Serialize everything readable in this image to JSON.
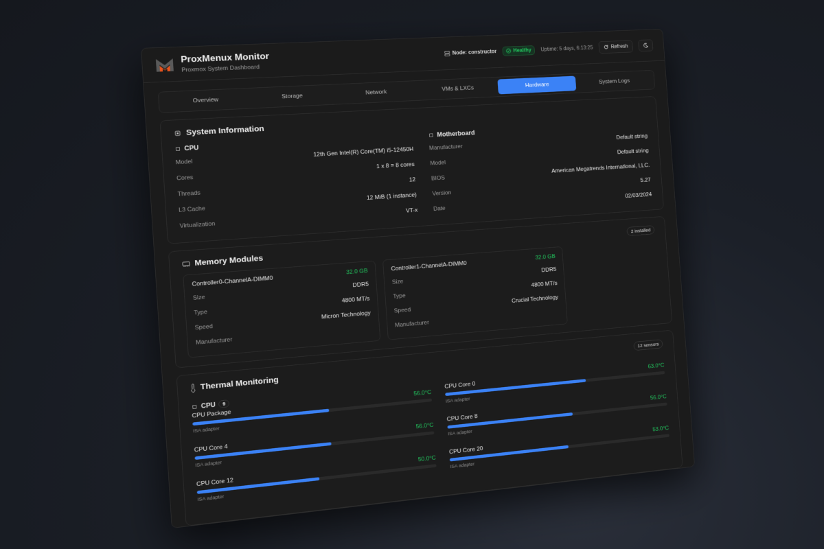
{
  "header": {
    "title": "ProxMenux Monitor",
    "subtitle": "Proxmox System Dashboard",
    "node": "Node: constructor",
    "status": "Healthy",
    "uptime": "Uptime: 5 days, 6:13:25",
    "refresh": "Refresh",
    "logo_colors": {
      "gray": "#5a5a5a",
      "orange": "#e8541e"
    }
  },
  "tabs": {
    "items": [
      "Overview",
      "Storage",
      "Network",
      "VMs & LXCs",
      "Hardware",
      "System Logs"
    ],
    "active": "Hardware"
  },
  "system_info": {
    "title": "System Information",
    "cpu": {
      "title": "CPU",
      "rows": [
        {
          "label": "Model",
          "value": "12th Gen Intel(R) Core(TM) i5-12450H"
        },
        {
          "label": "Cores",
          "value": "1 x 8 = 8 cores"
        },
        {
          "label": "Threads",
          "value": "12"
        },
        {
          "label": "L3 Cache",
          "value": "12 MiB (1 instance)"
        },
        {
          "label": "Virtualization",
          "value": "VT-x"
        }
      ]
    },
    "motherboard": {
      "title": "Motherboard",
      "rows": [
        {
          "label": "Manufacturer",
          "value": "Default string"
        },
        {
          "label": "Model",
          "value": "Default string"
        },
        {
          "label": "BIOS",
          "value": "American Megatrends International, LLC."
        },
        {
          "label": "Version",
          "value": "5.27"
        },
        {
          "label": "Date",
          "value": "02/03/2024"
        }
      ]
    }
  },
  "memory": {
    "title": "Memory Modules",
    "badge": "2 installed",
    "labels": {
      "size": "Size",
      "type": "Type",
      "speed": "Speed",
      "manufacturer": "Manufacturer"
    },
    "modules": [
      {
        "name": "Controller0-ChannelA-DIMM0",
        "size": "32.0 GB",
        "type": "DDR5",
        "speed": "4800 MT/s",
        "manufacturer": "Micron Technology"
      },
      {
        "name": "Controller1-ChannelA-DIMM0",
        "size": "32.0 GB",
        "type": "DDR5",
        "speed": "4800 MT/s",
        "manufacturer": "Crucial Technology"
      }
    ]
  },
  "thermal": {
    "title": "Thermal Monitoring",
    "badge": "12 sensors",
    "group": "CPU",
    "group_count": "9",
    "left": [
      {
        "name": "CPU Package",
        "temp": "56.0°C",
        "percent": 56,
        "adapter": "ISA adapter"
      },
      {
        "name": "CPU Core 4",
        "temp": "56.0°C",
        "percent": 56,
        "adapter": "ISA adapter"
      },
      {
        "name": "CPU Core 12",
        "temp": "50.0°C",
        "percent": 50,
        "adapter": "ISA adapter"
      }
    ],
    "right": [
      {
        "name": "CPU Core 0",
        "temp": "63.0°C",
        "percent": 63,
        "adapter": "ISA adapter"
      },
      {
        "name": "CPU Core 8",
        "temp": "56.0°C",
        "percent": 56,
        "adapter": "ISA adapter"
      },
      {
        "name": "CPU Core 20",
        "temp": "53.0°C",
        "percent": 53,
        "adapter": "ISA adapter"
      }
    ]
  },
  "colors": {
    "accent": "#3b82f6",
    "ok": "#22c55e",
    "background": "#1b1b1b"
  }
}
